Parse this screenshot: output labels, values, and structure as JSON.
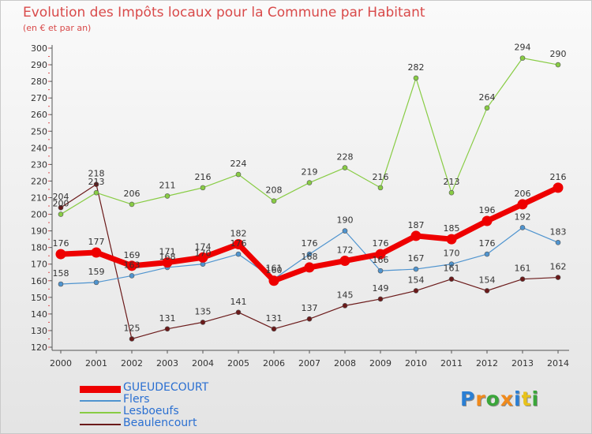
{
  "chart_data": {
    "type": "line",
    "title": "Evolution des Impôts locaux pour la Commune par Habitant",
    "subtitle": "(en € et par an)",
    "xlabel": "",
    "ylabel": "",
    "x": [
      "2000",
      "2001",
      "2002",
      "2003",
      "2004",
      "2005",
      "2006",
      "2007",
      "2008",
      "2009",
      "2010",
      "2011",
      "2012",
      "2013",
      "2014"
    ],
    "ylim": [
      120,
      300
    ],
    "yticks": [
      120,
      130,
      140,
      150,
      160,
      170,
      180,
      190,
      200,
      210,
      220,
      230,
      240,
      250,
      260,
      270,
      280,
      290,
      300
    ],
    "grid": false,
    "legend_position": "bottom-left",
    "series": [
      {
        "name": "Beaulencourt",
        "color": "#6b1a1a",
        "values": [
          204,
          218,
          125,
          131,
          135,
          141,
          131,
          137,
          145,
          149,
          154,
          161,
          154,
          161,
          162
        ]
      },
      {
        "name": "Lesboeufs",
        "color": "#88cc44",
        "values": [
          200,
          213,
          206,
          211,
          216,
          224,
          208,
          219,
          228,
          216,
          282,
          213,
          264,
          294,
          290
        ]
      },
      {
        "name": "Flers",
        "color": "#4f94cf",
        "values": [
          158,
          159,
          163,
          168,
          170,
          176,
          161,
          176,
          190,
          166,
          167,
          170,
          176,
          192,
          183
        ]
      },
      {
        "name": "GUEUDECOURT",
        "color": "#ee0000",
        "values": [
          176,
          177,
          169,
          171,
          174,
          182,
          160,
          168,
          172,
          176,
          187,
          185,
          196,
          206,
          216
        ]
      }
    ]
  },
  "legend": {
    "items": [
      {
        "name": "GUEUDECOURT",
        "color": "#ee0000"
      },
      {
        "name": "Flers",
        "color": "#4f94cf"
      },
      {
        "name": "Lesboeufs",
        "color": "#88cc44"
      },
      {
        "name": "Beaulencourt",
        "color": "#6b1a1a"
      }
    ]
  },
  "logo": {
    "letters": [
      "P",
      "r",
      "o",
      "x",
      "i",
      "t",
      "i"
    ],
    "colors": [
      "#2a7fd4",
      "#f08a1c",
      "#3aa63a",
      "#f08a1c",
      "#2a7fd4",
      "#e8c21a",
      "#3aa63a"
    ]
  }
}
